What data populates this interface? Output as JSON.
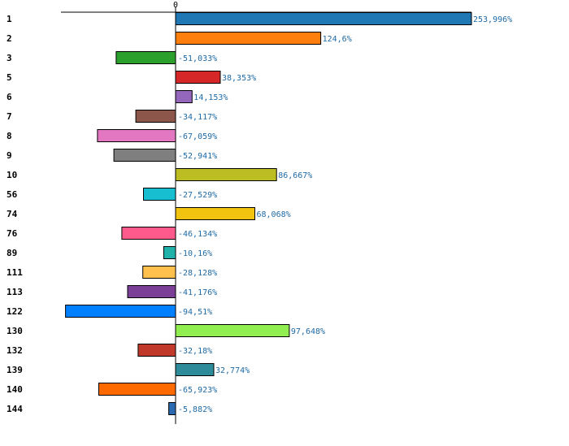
{
  "chart_data": {
    "type": "bar",
    "orientation": "horizontal",
    "zero_tick_label": "0",
    "categories": [
      "1",
      "2",
      "3",
      "5",
      "6",
      "7",
      "8",
      "9",
      "10",
      "56",
      "74",
      "76",
      "89",
      "111",
      "113",
      "122",
      "130",
      "132",
      "139",
      "140",
      "144"
    ],
    "values": [
      253.996,
      124.6,
      -51.033,
      38.353,
      14.153,
      -34.117,
      -67.059,
      -52.941,
      86.667,
      -27.529,
      68.068,
      -46.134,
      -10.16,
      -28.128,
      -41.176,
      -94.51,
      97.648,
      -32.18,
      32.774,
      -65.923,
      -5.882
    ],
    "value_labels": [
      "253,996%",
      "124,6%",
      "-51,033%",
      "38,353%",
      "14,153%",
      "-34,117%",
      "-67,059%",
      "-52,941%",
      "86,667%",
      "-27,529%",
      "68,068%",
      "-46,134%",
      "-10,16%",
      "-28,128%",
      "-41,176%",
      "-94,51%",
      "97,648%",
      "-32,18%",
      "32,774%",
      "-65,923%",
      "-5,882%"
    ],
    "colors": [
      "#1f77b4",
      "#ff7f0e",
      "#2ca02c",
      "#d62728",
      "#9467bd",
      "#8c564b",
      "#e377c2",
      "#7f7f7f",
      "#bcbd22",
      "#17becf",
      "#f2c40f",
      "#ff5a8c",
      "#20b2aa",
      "#ffc04d",
      "#7b3f98",
      "#0080ff",
      "#90ee50",
      "#c0392b",
      "#2e8b9a",
      "#ff6a00",
      "#2a6ab0"
    ],
    "label_color": "#1f6aa5",
    "xlim": [
      -100,
      260
    ]
  }
}
